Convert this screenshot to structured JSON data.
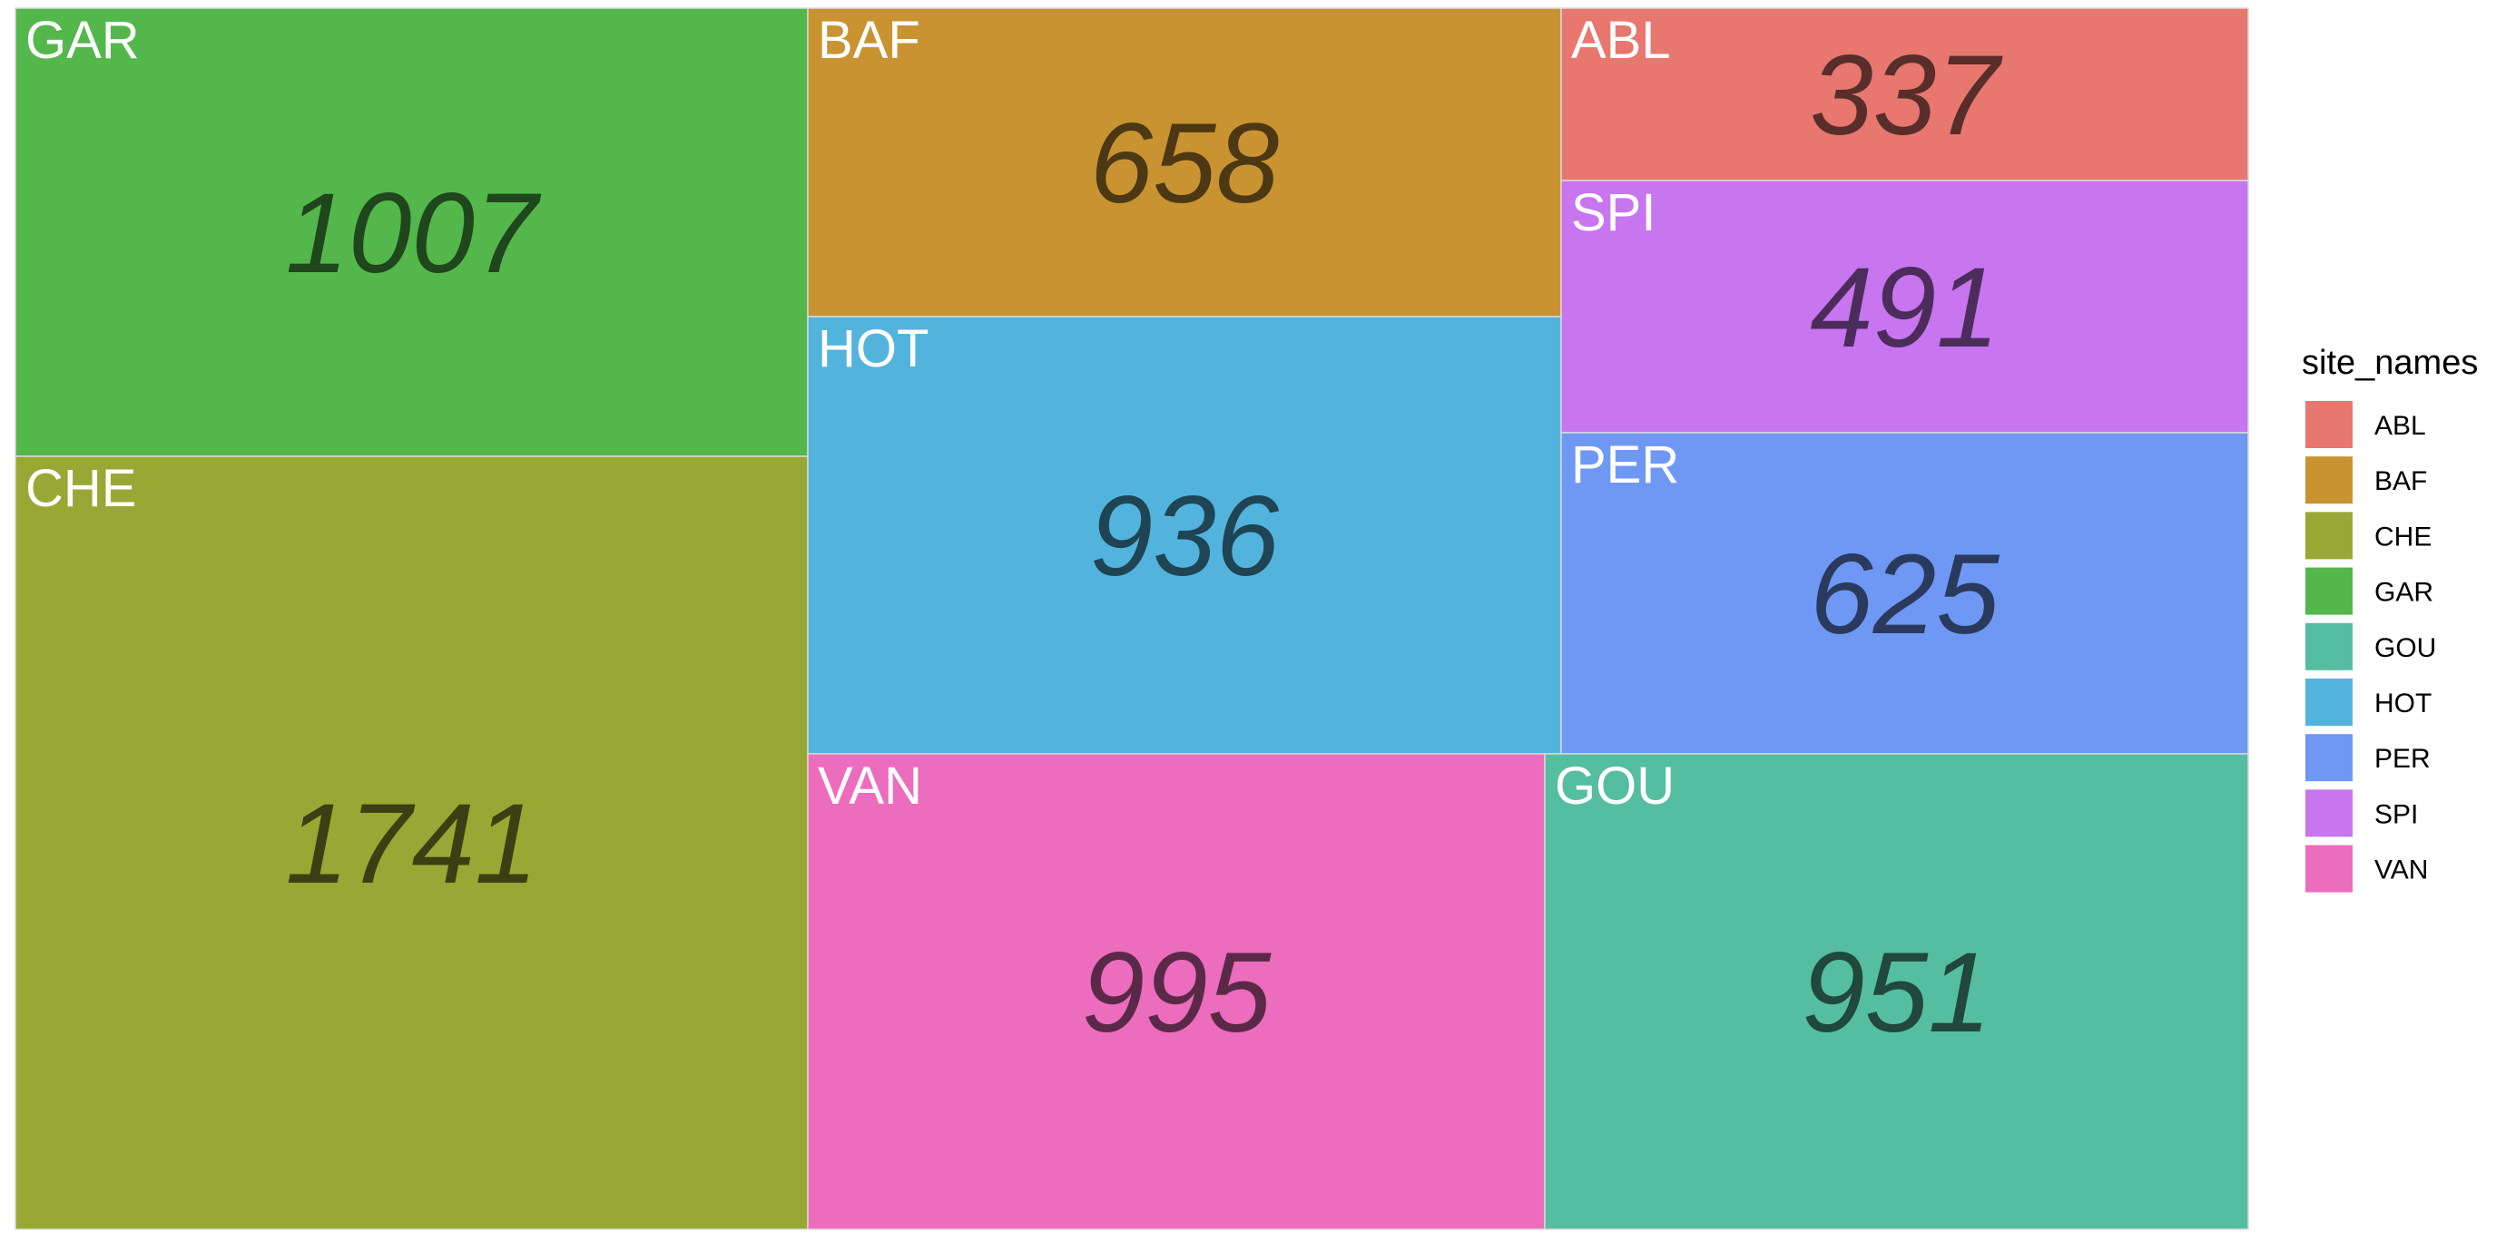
{
  "chart_data": {
    "type": "treemap",
    "legend": {
      "title": "site_names",
      "position": "right"
    },
    "items": [
      {
        "name": "ABL",
        "value": 337,
        "color": "#E7776F"
      },
      {
        "name": "BAF",
        "value": 658,
        "color": "#C99332"
      },
      {
        "name": "CHE",
        "value": 1741,
        "color": "#98A834"
      },
      {
        "name": "GAR",
        "value": 1007,
        "color": "#53B74B"
      },
      {
        "name": "GOU",
        "value": 951,
        "color": "#55BEA0"
      },
      {
        "name": "HOT",
        "value": 936,
        "color": "#52B4DD"
      },
      {
        "name": "PER",
        "value": 625,
        "color": "#6F98F5"
      },
      {
        "name": "SPI",
        "value": 491,
        "color": "#C875F0"
      },
      {
        "name": "VAN",
        "value": 995,
        "color": "#EC6CBD"
      }
    ]
  }
}
